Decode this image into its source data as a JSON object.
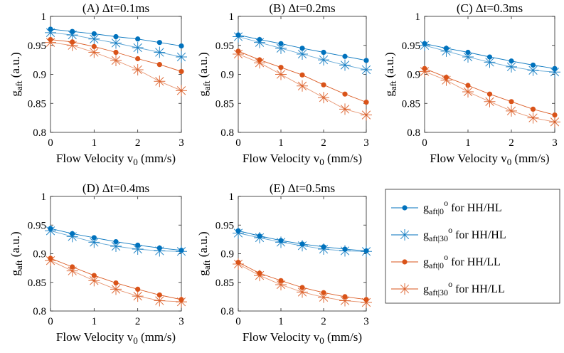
{
  "colors": {
    "blue": "#0072BD",
    "orange": "#D95319"
  },
  "legend": {
    "entries": [
      {
        "sym": "g",
        "sub": "aft|0",
        "sup": "o",
        "text": " for HH/HL",
        "color": "#0072BD",
        "marker": "dot"
      },
      {
        "sym": "g",
        "sub": "aft|30",
        "sup": "o",
        "text": " for HH/HL",
        "color": "#0072BD",
        "marker": "star"
      },
      {
        "sym": "g",
        "sub": "aft|0",
        "sup": "o",
        "text": " for HH/LL",
        "color": "#D95319",
        "marker": "dot"
      },
      {
        "sym": "g",
        "sub": "aft|30",
        "sup": "o",
        "text": " for HH/LL",
        "color": "#D95319",
        "marker": "star"
      }
    ]
  },
  "chart_data": [
    {
      "type": "line",
      "title": "(A) Δt=0.1ms",
      "xlabel": {
        "main": "Flow Velocity v",
        "sub": "0",
        "tail": " (mm/s)"
      },
      "ylabel": {
        "main": "g",
        "sub": "aft",
        "tail": " (a.u.)"
      },
      "xlim": [
        0,
        3
      ],
      "ylim": [
        0.8,
        1
      ],
      "xticks": [
        "0",
        "1",
        "2",
        "3"
      ],
      "yticks": [
        "0.8",
        "0.85",
        "0.9",
        "0.95",
        "1"
      ],
      "x": [
        0,
        0.5,
        1,
        1.5,
        2,
        2.5,
        3
      ],
      "series": [
        {
          "name": "g_aft|0° for HH/HL",
          "marker": "dot",
          "color": "#0072BD",
          "values": [
            0.978,
            0.974,
            0.97,
            0.965,
            0.961,
            0.955,
            0.949
          ]
        },
        {
          "name": "g_aft|30° for HH/HL",
          "marker": "star",
          "color": "#0072BD",
          "values": [
            0.972,
            0.968,
            0.961,
            0.954,
            0.946,
            0.938,
            0.93
          ]
        },
        {
          "name": "g_aft|0° for HH/LL",
          "marker": "dot",
          "color": "#D95319",
          "values": [
            0.96,
            0.956,
            0.948,
            0.938,
            0.927,
            0.917,
            0.905
          ]
        },
        {
          "name": "g_aft|30° for HH/LL",
          "marker": "star",
          "color": "#D95319",
          "values": [
            0.955,
            0.95,
            0.938,
            0.924,
            0.908,
            0.888,
            0.872
          ]
        }
      ]
    },
    {
      "type": "line",
      "title": "(B) Δt=0.2ms",
      "xlabel": {
        "main": "Flow Velocity v",
        "sub": "0",
        "tail": " (mm/s)"
      },
      "ylabel": {
        "main": "g",
        "sub": "aft",
        "tail": " (a.u.)"
      },
      "xlim": [
        0,
        3
      ],
      "ylim": [
        0.8,
        1
      ],
      "xticks": [
        "0",
        "1",
        "2",
        "3"
      ],
      "yticks": [
        "0.8",
        "0.85",
        "0.9",
        "0.95",
        "1"
      ],
      "x": [
        0,
        0.5,
        1,
        1.5,
        2,
        2.5,
        3
      ],
      "series": [
        {
          "name": "g_aft|0° for HH/HL",
          "marker": "dot",
          "color": "#0072BD",
          "values": [
            0.968,
            0.96,
            0.953,
            0.945,
            0.938,
            0.931,
            0.924
          ]
        },
        {
          "name": "g_aft|30° for HH/HL",
          "marker": "star",
          "color": "#0072BD",
          "values": [
            0.965,
            0.955,
            0.945,
            0.935,
            0.925,
            0.916,
            0.908
          ]
        },
        {
          "name": "g_aft|0° for HH/LL",
          "marker": "dot",
          "color": "#D95319",
          "values": [
            0.94,
            0.925,
            0.912,
            0.899,
            0.882,
            0.866,
            0.852
          ]
        },
        {
          "name": "g_aft|30° for HH/LL",
          "marker": "star",
          "color": "#D95319",
          "values": [
            0.935,
            0.92,
            0.9,
            0.88,
            0.86,
            0.84,
            0.83
          ]
        }
      ]
    },
    {
      "type": "line",
      "title": "(C) Δt=0.3ms",
      "xlabel": {
        "main": "Flow Velocity v",
        "sub": "0",
        "tail": " (mm/s)"
      },
      "ylabel": {
        "main": "g",
        "sub": "aft",
        "tail": " (a.u.)"
      },
      "xlim": [
        0,
        3
      ],
      "ylim": [
        0.8,
        1
      ],
      "xticks": [
        "0",
        "1",
        "2",
        "3"
      ],
      "yticks": [
        "0.8",
        "0.85",
        "0.9",
        "0.95",
        "1"
      ],
      "x": [
        0,
        0.5,
        1,
        1.5,
        2,
        2.5,
        3
      ],
      "series": [
        {
          "name": "g_aft|0° for HH/HL",
          "marker": "dot",
          "color": "#0072BD",
          "values": [
            0.953,
            0.945,
            0.938,
            0.93,
            0.923,
            0.916,
            0.91
          ]
        },
        {
          "name": "g_aft|30° for HH/HL",
          "marker": "star",
          "color": "#0072BD",
          "values": [
            0.95,
            0.94,
            0.93,
            0.921,
            0.913,
            0.907,
            0.904
          ]
        },
        {
          "name": "g_aft|0° for HH/LL",
          "marker": "dot",
          "color": "#D95319",
          "values": [
            0.91,
            0.895,
            0.881,
            0.866,
            0.853,
            0.84,
            0.83
          ]
        },
        {
          "name": "g_aft|30° for HH/LL",
          "marker": "star",
          "color": "#D95319",
          "values": [
            0.905,
            0.89,
            0.87,
            0.853,
            0.837,
            0.825,
            0.818
          ]
        }
      ]
    },
    {
      "type": "line",
      "title": "(D) Δt=0.4ms",
      "xlabel": {
        "main": "Flow Velocity v",
        "sub": "0",
        "tail": " (mm/s)"
      },
      "ylabel": {
        "main": "g",
        "sub": "aft",
        "tail": " (a.u.)"
      },
      "xlim": [
        0,
        3
      ],
      "ylim": [
        0.8,
        1
      ],
      "xticks": [
        "0",
        "1",
        "2",
        "3"
      ],
      "yticks": [
        "0.8",
        "0.85",
        "0.9",
        "0.95",
        "1"
      ],
      "x": [
        0,
        0.5,
        1,
        1.5,
        2,
        2.5,
        3
      ],
      "series": [
        {
          "name": "g_aft|0° for HH/HL",
          "marker": "dot",
          "color": "#0072BD",
          "values": [
            0.944,
            0.935,
            0.928,
            0.921,
            0.915,
            0.91,
            0.906
          ]
        },
        {
          "name": "g_aft|30° for HH/HL",
          "marker": "star",
          "color": "#0072BD",
          "values": [
            0.94,
            0.93,
            0.92,
            0.913,
            0.908,
            0.905,
            0.904
          ]
        },
        {
          "name": "g_aft|0° for HH/LL",
          "marker": "dot",
          "color": "#D95319",
          "values": [
            0.892,
            0.877,
            0.862,
            0.849,
            0.838,
            0.828,
            0.82
          ]
        },
        {
          "name": "g_aft|30° for HH/LL",
          "marker": "star",
          "color": "#D95319",
          "values": [
            0.888,
            0.87,
            0.853,
            0.838,
            0.826,
            0.818,
            0.816
          ]
        }
      ]
    },
    {
      "type": "line",
      "title": "(E) Δt=0.5ms",
      "xlabel": {
        "main": "Flow Velocity v",
        "sub": "0",
        "tail": " (mm/s)"
      },
      "ylabel": {
        "main": "g",
        "sub": "aft",
        "tail": " (a.u.)"
      },
      "xlim": [
        0,
        3
      ],
      "ylim": [
        0.8,
        1
      ],
      "xticks": [
        "0",
        "1",
        "2",
        "3"
      ],
      "yticks": [
        "0.8",
        "0.85",
        "0.9",
        "0.95",
        "1"
      ],
      "x": [
        0,
        0.5,
        1,
        1.5,
        2,
        2.5,
        3
      ],
      "series": [
        {
          "name": "g_aft|0° for HH/HL",
          "marker": "dot",
          "color": "#0072BD",
          "values": [
            0.94,
            0.931,
            0.923,
            0.917,
            0.912,
            0.908,
            0.905
          ]
        },
        {
          "name": "g_aft|30° for HH/HL",
          "marker": "star",
          "color": "#0072BD",
          "values": [
            0.936,
            0.928,
            0.92,
            0.914,
            0.908,
            0.905,
            0.904
          ]
        },
        {
          "name": "g_aft|0° for HH/LL",
          "marker": "dot",
          "color": "#D95319",
          "values": [
            0.885,
            0.866,
            0.853,
            0.841,
            0.832,
            0.825,
            0.82
          ]
        },
        {
          "name": "g_aft|30° for HH/LL",
          "marker": "star",
          "color": "#D95319",
          "values": [
            0.882,
            0.862,
            0.846,
            0.833,
            0.824,
            0.818,
            0.815
          ]
        }
      ]
    }
  ]
}
